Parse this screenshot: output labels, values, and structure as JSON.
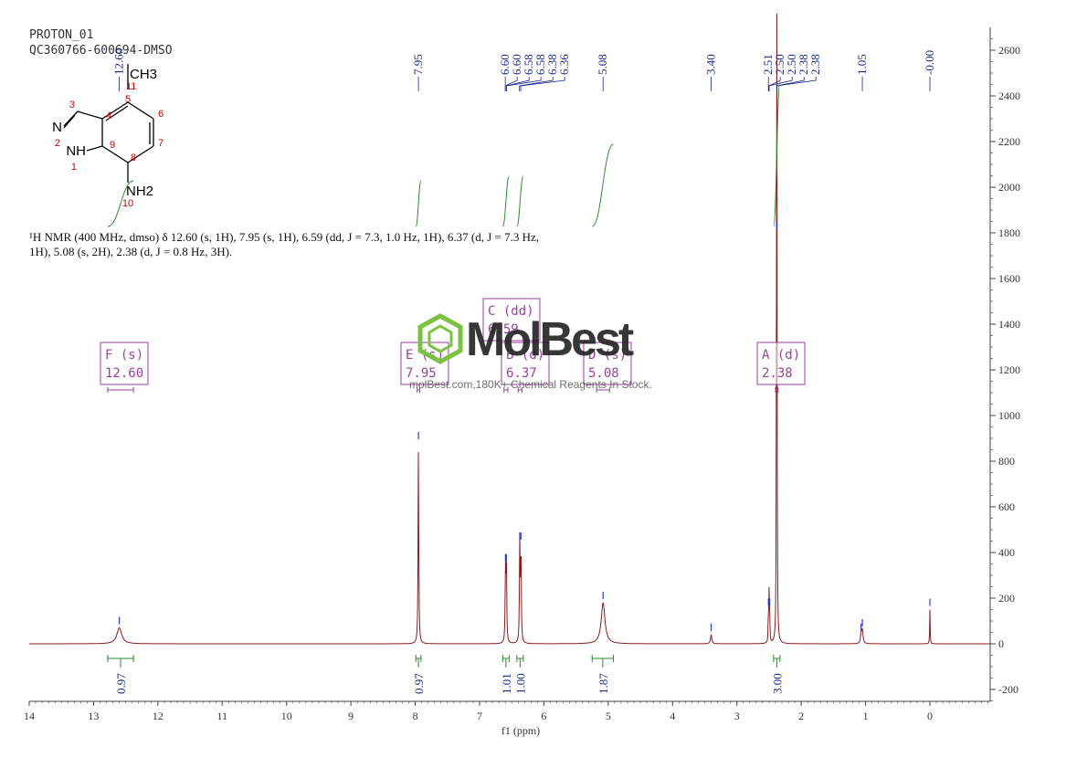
{
  "header": {
    "line1": "PROTON_01",
    "line2": "QC360766-600694-DMSO"
  },
  "nmr_description": "¹H NMR (400 MHz, dmso) δ 12.60 (s, 1H), 7.95 (s, 1H), 6.59 (dd, J = 7.3, 1.0 Hz, 1H), 6.37 (d, J = 7.3 Hz, 1H), 5.08 (s, 2H), 2.38 (d, J = 0.8 Hz, 3H).",
  "watermark": {
    "brand": "MolBest",
    "subtitle": "molBest.com,180K+ Chemical Reagents In Stock."
  },
  "structure": {
    "labels": [
      "CH3",
      "11",
      "3",
      "5",
      "4",
      "6",
      "N",
      "2",
      "NH",
      "1",
      "9",
      "7",
      "8",
      "NH2",
      "10"
    ]
  },
  "colors": {
    "spectrum": "#8b1a1a",
    "peak_marker": "#2a3fbf",
    "integral": "#2e8b2e",
    "multiplet_box": "#9b3fa0",
    "atom_number": "#cc0000"
  },
  "chart_data": {
    "type": "line",
    "xlabel": "f1 (ppm)",
    "xlim": [
      14,
      -0.95
    ],
    "ylim": [
      -250,
      2700
    ],
    "x_ticks": [
      14,
      13,
      12,
      11,
      10,
      9,
      8,
      7,
      6,
      5,
      4,
      3,
      2,
      1,
      0
    ],
    "y_ticks": [
      2600,
      2400,
      2200,
      2000,
      1800,
      1600,
      1400,
      1200,
      1000,
      800,
      600,
      400,
      200,
      0,
      -200
    ],
    "peaks": [
      {
        "ppm": 12.6,
        "height": 70,
        "width": 0.045
      },
      {
        "ppm": 7.95,
        "height": 880,
        "width": 0.006
      },
      {
        "ppm": 6.597,
        "height": 345,
        "width": 0.006
      },
      {
        "ppm": 6.583,
        "height": 345,
        "width": 0.006
      },
      {
        "ppm": 6.375,
        "height": 440,
        "width": 0.006
      },
      {
        "ppm": 6.357,
        "height": 440,
        "width": 0.006
      },
      {
        "ppm": 5.08,
        "height": 180,
        "width": 0.035
      },
      {
        "ppm": 3.4,
        "height": 40,
        "width": 0.012
      },
      {
        "ppm": 2.51,
        "height": 150,
        "width": 0.004
      },
      {
        "ppm": 2.5,
        "height": 200,
        "width": 0.004
      },
      {
        "ppm": 2.49,
        "height": 150,
        "width": 0.004
      },
      {
        "ppm": 2.382,
        "height": 1800,
        "width": 0.004
      },
      {
        "ppm": 2.378,
        "height": 1800,
        "width": 0.004
      },
      {
        "ppm": 1.05,
        "height": 60,
        "width": 0.012
      },
      {
        "ppm": 1.07,
        "height": 40,
        "width": 0.01
      },
      {
        "ppm": 0.0,
        "height": 150,
        "width": 0.004
      }
    ],
    "peak_labels": [
      "12.60",
      "7.95",
      "6.60",
      "6.60",
      "6.58",
      "6.58",
      "6.38",
      "6.36",
      "5.08",
      "3.40",
      "2.51",
      "2.50",
      "2.50",
      "2.38",
      "2.38",
      "1.05",
      "-0.00"
    ],
    "peak_label_targets": [
      12.6,
      7.95,
      6.6,
      6.6,
      6.58,
      6.58,
      6.38,
      6.36,
      5.08,
      3.4,
      2.51,
      2.5,
      2.5,
      2.38,
      2.38,
      1.05,
      0.0
    ],
    "integrals": [
      {
        "from": 12.78,
        "to": 12.38,
        "value": "0.97"
      },
      {
        "from": 7.99,
        "to": 7.91,
        "value": "0.97"
      },
      {
        "from": 6.64,
        "to": 6.54,
        "value": "1.01"
      },
      {
        "from": 6.42,
        "to": 6.32,
        "value": "1.00"
      },
      {
        "from": 5.25,
        "to": 4.92,
        "value": "1.87"
      },
      {
        "from": 2.43,
        "to": 2.33,
        "value": "3.00"
      }
    ],
    "multiplets": [
      {
        "letter": "F",
        "type": "(s)",
        "shift": "12.60",
        "from": 12.78,
        "to": 12.38
      },
      {
        "letter": "E",
        "type": "(s)",
        "shift": "7.95",
        "from": 7.97,
        "to": 7.93
      },
      {
        "letter": "C",
        "type": "(dd)",
        "shift": "6.59",
        "from": 6.62,
        "to": 6.56
      },
      {
        "letter": "B",
        "type": "(d)",
        "shift": "6.37",
        "from": 6.4,
        "to": 6.34
      },
      {
        "letter": "D",
        "type": "(s)",
        "shift": "5.08",
        "from": 5.18,
        "to": 4.98
      },
      {
        "letter": "A",
        "type": "(d)",
        "shift": "2.38",
        "from": 2.4,
        "to": 2.36
      }
    ]
  }
}
